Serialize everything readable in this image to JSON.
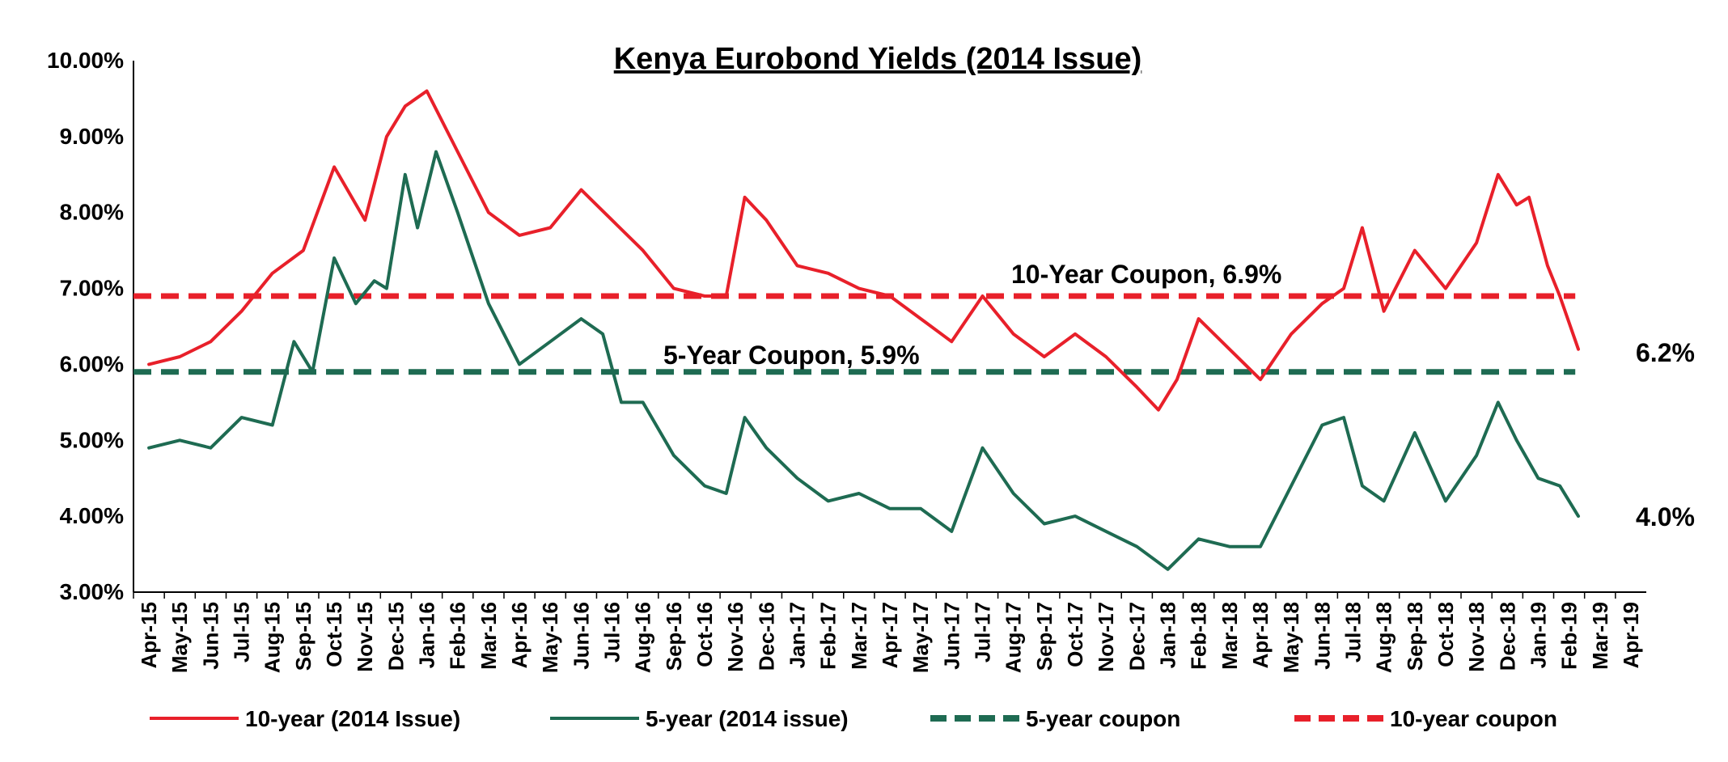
{
  "chart_data": {
    "type": "line",
    "title": "Kenya Eurobond Yields (2014 Issue)",
    "xlabel": "",
    "ylabel": "",
    "ylim": [
      3.0,
      10.0
    ],
    "y_ticks": [
      "3.00%",
      "4.00%",
      "5.00%",
      "6.00%",
      "7.00%",
      "8.00%",
      "9.00%",
      "10.00%"
    ],
    "x_ticks": [
      "Apr-15",
      "May-15",
      "Jun-15",
      "Jul-15",
      "Aug-15",
      "Sep-15",
      "Oct-15",
      "Nov-15",
      "Dec-15",
      "Jan-16",
      "Feb-16",
      "Mar-16",
      "Apr-16",
      "May-16",
      "Jun-16",
      "Jul-16",
      "Aug-16",
      "Sep-16",
      "Oct-16",
      "Nov-16",
      "Dec-16",
      "Jan-17",
      "Feb-17",
      "Mar-17",
      "Apr-17",
      "May-17",
      "Jun-17",
      "Jul-17",
      "Aug-17",
      "Sep-17",
      "Oct-17",
      "Nov-17",
      "Dec-17",
      "Jan-18",
      "Feb-18",
      "Mar-18",
      "Apr-18",
      "May-18",
      "Jun-18",
      "Jul-18",
      "Aug-18",
      "Sep-18",
      "Oct-18",
      "Nov-18",
      "Dec-18",
      "Jan-19",
      "Feb-19",
      "Mar-19",
      "Apr-19"
    ],
    "grid": false,
    "legend_position": "bottom",
    "series": [
      {
        "name": "10-year (2014 Issue)",
        "color": "#e8202a",
        "style": "solid",
        "values": [
          [
            "Apr-15",
            6.0
          ],
          [
            "May-15",
            6.1
          ],
          [
            "Jun-15",
            6.3
          ],
          [
            "Jul-15",
            6.7
          ],
          [
            "Aug-15",
            7.2
          ],
          [
            "Sep-15",
            7.5
          ],
          [
            "Oct-15",
            8.6
          ],
          [
            "Nov-15",
            7.9
          ],
          [
            "Dec-15",
            9.0
          ],
          [
            "Dec-15",
            9.4
          ],
          [
            "Jan-16",
            9.6
          ],
          [
            "Feb-16",
            8.8
          ],
          [
            "Mar-16",
            8.0
          ],
          [
            "Apr-16",
            7.7
          ],
          [
            "May-16",
            7.8
          ],
          [
            "Jun-16",
            8.3
          ],
          [
            "Jul-16",
            7.9
          ],
          [
            "Aug-16",
            7.5
          ],
          [
            "Sep-16",
            7.0
          ],
          [
            "Oct-16",
            6.9
          ],
          [
            "Nov-16",
            6.9
          ],
          [
            "Nov-16",
            8.2
          ],
          [
            "Dec-16",
            7.9
          ],
          [
            "Jan-17",
            7.3
          ],
          [
            "Feb-17",
            7.2
          ],
          [
            "Mar-17",
            7.0
          ],
          [
            "Apr-17",
            6.9
          ],
          [
            "May-17",
            6.6
          ],
          [
            "Jun-17",
            6.3
          ],
          [
            "Jul-17",
            6.9
          ],
          [
            "Aug-17",
            6.4
          ],
          [
            "Sep-17",
            6.1
          ],
          [
            "Oct-17",
            6.4
          ],
          [
            "Nov-17",
            6.1
          ],
          [
            "Dec-17",
            5.7
          ],
          [
            "Jan-18",
            5.4
          ],
          [
            "Jan-18",
            5.8
          ],
          [
            "Feb-18",
            6.6
          ],
          [
            "Mar-18",
            6.2
          ],
          [
            "Apr-18",
            5.8
          ],
          [
            "May-18",
            6.4
          ],
          [
            "Jun-18",
            6.8
          ],
          [
            "Jul-18",
            7.0
          ],
          [
            "Jul-18",
            7.8
          ],
          [
            "Aug-18",
            6.7
          ],
          [
            "Sep-18",
            7.5
          ],
          [
            "Oct-18",
            7.0
          ],
          [
            "Nov-18",
            7.6
          ],
          [
            "Dec-18",
            8.5
          ],
          [
            "Dec-18",
            8.1
          ],
          [
            "Jan-19",
            8.2
          ],
          [
            "Jan-19",
            7.3
          ],
          [
            "Feb-19",
            6.9
          ],
          [
            "Feb-19",
            6.2
          ]
        ]
      },
      {
        "name": "5-year (2014 issue)",
        "color": "#1e6b52",
        "style": "solid",
        "values": [
          [
            "Apr-15",
            4.9
          ],
          [
            "May-15",
            5.0
          ],
          [
            "Jun-15",
            4.9
          ],
          [
            "Jul-15",
            5.3
          ],
          [
            "Aug-15",
            5.2
          ],
          [
            "Sep-15",
            6.3
          ],
          [
            "Sep-15",
            5.9
          ],
          [
            "Oct-15",
            7.4
          ],
          [
            "Nov-15",
            6.8
          ],
          [
            "Nov-15",
            7.1
          ],
          [
            "Dec-15",
            7.0
          ],
          [
            "Dec-15",
            8.5
          ],
          [
            "Jan-16",
            7.8
          ],
          [
            "Jan-16",
            8.8
          ],
          [
            "Feb-16",
            8.0
          ],
          [
            "Mar-16",
            6.8
          ],
          [
            "Apr-16",
            6.0
          ],
          [
            "May-16",
            6.3
          ],
          [
            "Jun-16",
            6.6
          ],
          [
            "Jul-16",
            6.4
          ],
          [
            "Jul-16",
            5.5
          ],
          [
            "Aug-16",
            5.5
          ],
          [
            "Sep-16",
            4.8
          ],
          [
            "Oct-16",
            4.4
          ],
          [
            "Nov-16",
            4.3
          ],
          [
            "Nov-16",
            5.3
          ],
          [
            "Dec-16",
            4.9
          ],
          [
            "Jan-17",
            4.5
          ],
          [
            "Feb-17",
            4.2
          ],
          [
            "Mar-17",
            4.3
          ],
          [
            "Apr-17",
            4.1
          ],
          [
            "May-17",
            4.1
          ],
          [
            "Jun-17",
            3.8
          ],
          [
            "Jul-17",
            4.9
          ],
          [
            "Aug-17",
            4.3
          ],
          [
            "Sep-17",
            3.9
          ],
          [
            "Oct-17",
            4.0
          ],
          [
            "Nov-17",
            3.8
          ],
          [
            "Dec-17",
            3.6
          ],
          [
            "Jan-18",
            3.3
          ],
          [
            "Feb-18",
            3.7
          ],
          [
            "Mar-18",
            3.6
          ],
          [
            "Apr-18",
            3.6
          ],
          [
            "May-18",
            4.4
          ],
          [
            "Jun-18",
            5.2
          ],
          [
            "Jul-18",
            5.3
          ],
          [
            "Jul-18",
            4.4
          ],
          [
            "Aug-18",
            4.2
          ],
          [
            "Sep-18",
            5.1
          ],
          [
            "Oct-18",
            4.2
          ],
          [
            "Nov-18",
            4.8
          ],
          [
            "Dec-18",
            5.5
          ],
          [
            "Dec-18",
            5.0
          ],
          [
            "Jan-19",
            4.5
          ],
          [
            "Feb-19",
            4.4
          ],
          [
            "Feb-19",
            4.0
          ]
        ]
      },
      {
        "name": "5-year coupon",
        "color": "#1e6b52",
        "style": "dashed",
        "values": [
          [
            "Apr-15",
            5.9
          ],
          [
            "Feb-19",
            5.9
          ]
        ]
      },
      {
        "name": "10-year coupon",
        "color": "#e8202a",
        "style": "dashed",
        "values": [
          [
            "Apr-15",
            6.9
          ],
          [
            "Feb-19",
            6.9
          ]
        ]
      }
    ],
    "annotations": [
      {
        "text": "10-Year Coupon, 6.9%"
      },
      {
        "text": "5-Year Coupon, 5.9%"
      },
      {
        "text": "6.2%"
      },
      {
        "text": "4.0%"
      }
    ]
  }
}
